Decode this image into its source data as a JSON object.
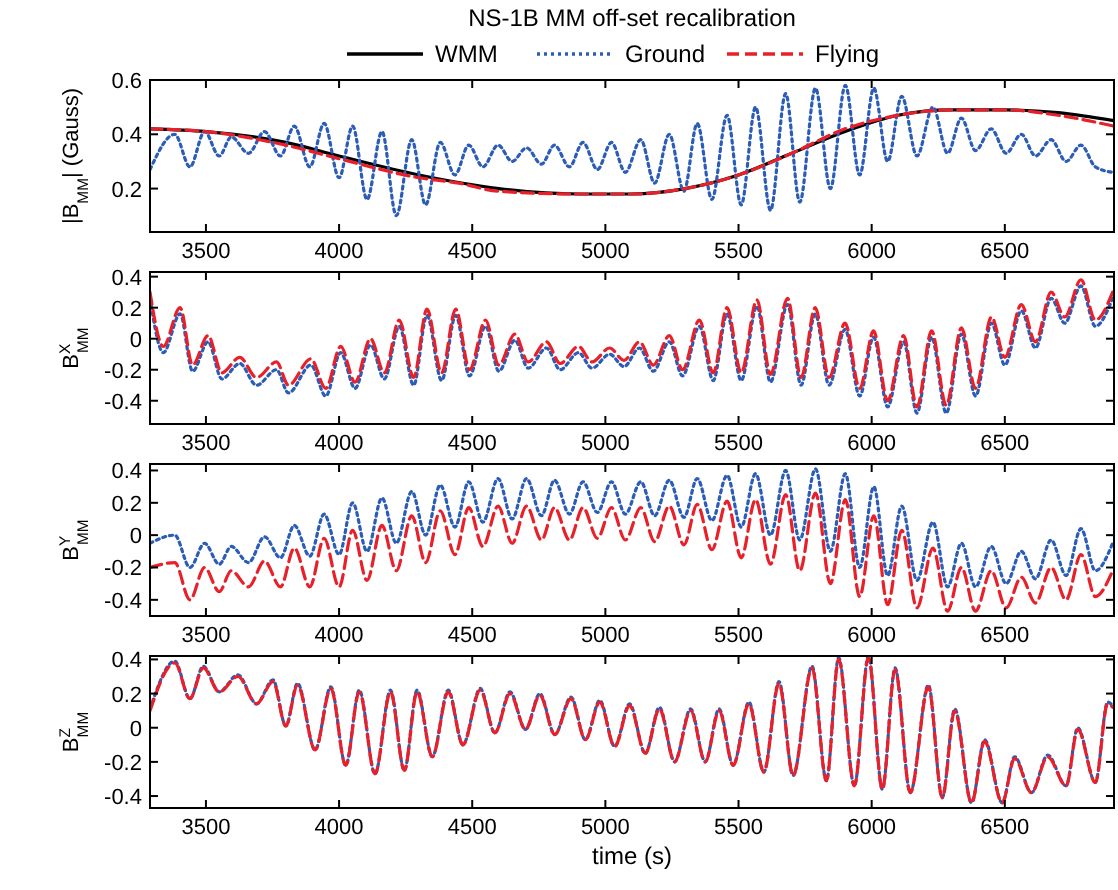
{
  "chart_data": [
    {
      "type": "line",
      "title": "NS-1B MM off-set recalibration",
      "ylabel": "|B$_{MM}$| (Gauss)",
      "legend": "top",
      "xlim": [
        3290,
        6910
      ],
      "xticks": [
        3500,
        4000,
        4500,
        5000,
        5500,
        6000,
        6500
      ],
      "ylim": [
        0.04,
        0.6
      ],
      "yticks": [
        0.2,
        0.4,
        0.6
      ],
      "series": [
        {
          "name": "WMM",
          "color": "#000000",
          "line_style": "solid",
          "x": [
            3290,
            3500,
            3800,
            4000,
            4300,
            4600,
            4900,
            5100,
            5300,
            5500,
            5700,
            5900,
            6100,
            6300,
            6500,
            6700,
            6910
          ],
          "values": [
            0.42,
            0.41,
            0.37,
            0.32,
            0.25,
            0.2,
            0.18,
            0.18,
            0.2,
            0.25,
            0.33,
            0.41,
            0.47,
            0.49,
            0.49,
            0.48,
            0.45
          ]
        },
        {
          "name": "Ground",
          "color": "#2a5cb8",
          "line_style": "dotted",
          "x": [
            3290,
            3383,
            3440,
            3495,
            3550,
            3595,
            3660,
            3720,
            3780,
            3832,
            3890,
            3944,
            4000,
            4051,
            4105,
            4161,
            4215,
            4273,
            4325,
            4380,
            4435,
            4487,
            4540,
            4597,
            4650,
            4704,
            4760,
            4809,
            4865,
            4916,
            4970,
            5023,
            5075,
            5133,
            5185,
            5240,
            5295,
            5345,
            5400,
            5457,
            5510,
            5564,
            5620,
            5677,
            5730,
            5789,
            5845,
            5901,
            5955,
            6008,
            6060,
            6113,
            6170,
            6230,
            6285,
            6337,
            6390,
            6449,
            6505,
            6562,
            6615,
            6674,
            6730,
            6786,
            6840,
            6905
          ],
          "values": [
            0.27,
            0.4,
            0.28,
            0.41,
            0.32,
            0.39,
            0.33,
            0.41,
            0.32,
            0.43,
            0.28,
            0.44,
            0.24,
            0.43,
            0.16,
            0.41,
            0.1,
            0.38,
            0.14,
            0.37,
            0.25,
            0.36,
            0.28,
            0.36,
            0.3,
            0.35,
            0.29,
            0.36,
            0.28,
            0.37,
            0.27,
            0.37,
            0.26,
            0.38,
            0.22,
            0.4,
            0.19,
            0.44,
            0.16,
            0.47,
            0.14,
            0.5,
            0.12,
            0.55,
            0.15,
            0.57,
            0.2,
            0.58,
            0.25,
            0.57,
            0.3,
            0.54,
            0.32,
            0.5,
            0.33,
            0.46,
            0.34,
            0.42,
            0.33,
            0.4,
            0.32,
            0.38,
            0.3,
            0.36,
            0.28,
            0.26
          ]
        },
        {
          "name": "Flying",
          "color": "#e8202a",
          "line_style": "dashed",
          "x": [
            3290,
            3500,
            3800,
            4000,
            4300,
            4450,
            4600,
            4900,
            5100,
            5300,
            5500,
            5700,
            5900,
            6100,
            6300,
            6500,
            6700,
            6910
          ],
          "values": [
            0.42,
            0.41,
            0.36,
            0.31,
            0.24,
            0.22,
            0.19,
            0.18,
            0.18,
            0.2,
            0.25,
            0.33,
            0.42,
            0.47,
            0.49,
            0.49,
            0.47,
            0.43
          ]
        }
      ]
    },
    {
      "type": "line",
      "ylabel": "B$^{X}$$_{MM}$",
      "xlim": [
        3290,
        6910
      ],
      "xticks": [
        3500,
        4000,
        4500,
        5000,
        5500,
        6000,
        6500
      ],
      "ylim": [
        -0.55,
        0.43
      ],
      "yticks": [
        -0.4,
        -0.2,
        0,
        0.2,
        0.4
      ],
      "x": [
        3290,
        3340,
        3403,
        3450,
        3508,
        3560,
        3627,
        3690,
        3765,
        3810,
        3894,
        3950,
        4006,
        4060,
        4118,
        4170,
        4226,
        4280,
        4330,
        4385,
        4438,
        4490,
        4550,
        4600,
        4660,
        4710,
        4779,
        4830,
        4899,
        4950,
        5016,
        5070,
        5128,
        5180,
        5240,
        5290,
        5353,
        5405,
        5457,
        5510,
        5569,
        5620,
        5684,
        5735,
        5788,
        5840,
        5900,
        5955,
        6007,
        6060,
        6120,
        6170,
        6225,
        6280,
        6337,
        6390,
        6450,
        6500,
        6562,
        6615,
        6674,
        6725,
        6786,
        6840,
        6905
      ],
      "series": [
        {
          "color": "#2a5cb8",
          "line_style": "dotted",
          "values": [
            0.26,
            -0.09,
            0.16,
            -0.21,
            -0.02,
            -0.26,
            -0.16,
            -0.3,
            -0.2,
            -0.35,
            -0.17,
            -0.37,
            -0.09,
            -0.32,
            -0.04,
            -0.26,
            0.08,
            -0.3,
            0.15,
            -0.27,
            0.15,
            -0.24,
            0.08,
            -0.21,
            -0.01,
            -0.19,
            -0.06,
            -0.2,
            -0.09,
            -0.19,
            -0.1,
            -0.18,
            -0.06,
            -0.21,
            -0.02,
            -0.24,
            0.08,
            -0.27,
            0.16,
            -0.27,
            0.21,
            -0.28,
            0.22,
            -0.3,
            0.16,
            -0.3,
            0.06,
            -0.37,
            0.01,
            -0.44,
            -0.02,
            -0.48,
            0.01,
            -0.48,
            0.03,
            -0.37,
            0.1,
            -0.17,
            0.18,
            -0.06,
            0.26,
            0.1,
            0.34,
            0.08,
            0.26
          ]
        },
        {
          "color": "#e8202a",
          "line_style": "dashed",
          "values": [
            0.3,
            -0.05,
            0.2,
            -0.17,
            0.02,
            -0.22,
            -0.12,
            -0.25,
            -0.15,
            -0.3,
            -0.13,
            -0.32,
            -0.05,
            -0.28,
            0,
            -0.22,
            0.12,
            -0.25,
            0.19,
            -0.22,
            0.19,
            -0.2,
            0.12,
            -0.17,
            0.03,
            -0.15,
            -0.02,
            -0.16,
            -0.05,
            -0.15,
            -0.06,
            -0.14,
            -0.02,
            -0.17,
            0.02,
            -0.2,
            0.12,
            -0.22,
            0.2,
            -0.22,
            0.25,
            -0.23,
            0.26,
            -0.25,
            0.2,
            -0.25,
            0.1,
            -0.32,
            0.05,
            -0.4,
            0.02,
            -0.44,
            0.05,
            -0.43,
            0.07,
            -0.32,
            0.14,
            -0.12,
            0.22,
            -0.02,
            0.3,
            0.14,
            0.38,
            0.12,
            0.3
          ]
        }
      ]
    },
    {
      "type": "line",
      "ylabel": "B$^{Y}$$_{MM}$",
      "xlim": [
        3290,
        6910
      ],
      "xticks": [
        3500,
        4000,
        4500,
        5000,
        5500,
        6000,
        6500
      ],
      "ylim": [
        -0.5,
        0.44
      ],
      "yticks": [
        -0.4,
        -0.2,
        0,
        0.2,
        0.4
      ],
      "x": [
        3290,
        3383,
        3440,
        3495,
        3550,
        3595,
        3660,
        3720,
        3780,
        3832,
        3890,
        3944,
        4000,
        4051,
        4105,
        4161,
        4215,
        4273,
        4325,
        4380,
        4435,
        4487,
        4540,
        4597,
        4650,
        4704,
        4760,
        4809,
        4865,
        4916,
        4970,
        5023,
        5075,
        5133,
        5185,
        5240,
        5295,
        5345,
        5400,
        5457,
        5510,
        5564,
        5620,
        5677,
        5730,
        5789,
        5845,
        5901,
        5955,
        6008,
        6060,
        6113,
        6170,
        6230,
        6285,
        6337,
        6390,
        6449,
        6505,
        6562,
        6615,
        6674,
        6730,
        6786,
        6840,
        6905
      ],
      "series": [
        {
          "color": "#2a5cb8",
          "line_style": "dotted",
          "values": [
            -0.05,
            0,
            -0.2,
            -0.05,
            -0.18,
            -0.07,
            -0.17,
            -0.01,
            -0.14,
            0.06,
            -0.13,
            0.13,
            -0.12,
            0.2,
            -0.1,
            0.23,
            -0.05,
            0.27,
            0,
            0.31,
            0.05,
            0.33,
            0.08,
            0.35,
            0.1,
            0.35,
            0.12,
            0.34,
            0.13,
            0.33,
            0.14,
            0.33,
            0.13,
            0.33,
            0.12,
            0.34,
            0.11,
            0.35,
            0.09,
            0.37,
            0.05,
            0.38,
            0,
            0.4,
            -0.03,
            0.41,
            -0.1,
            0.38,
            -0.2,
            0.3,
            -0.25,
            0.18,
            -0.28,
            0.08,
            -0.32,
            -0.05,
            -0.32,
            -0.07,
            -0.3,
            -0.1,
            -0.27,
            -0.03,
            -0.25,
            0.04,
            -0.22,
            -0.05
          ]
        },
        {
          "color": "#e8202a",
          "line_style": "dashed",
          "values": [
            -0.2,
            -0.17,
            -0.4,
            -0.2,
            -0.35,
            -0.22,
            -0.32,
            -0.16,
            -0.32,
            -0.08,
            -0.32,
            -0.02,
            -0.32,
            0.03,
            -0.28,
            0.06,
            -0.22,
            0.12,
            -0.17,
            0.15,
            -0.12,
            0.17,
            -0.07,
            0.18,
            -0.05,
            0.18,
            -0.03,
            0.17,
            -0.03,
            0.17,
            -0.02,
            0.17,
            -0.03,
            0.17,
            -0.04,
            0.18,
            -0.06,
            0.19,
            -0.09,
            0.21,
            -0.14,
            0.22,
            -0.18,
            0.25,
            -0.22,
            0.26,
            -0.3,
            0.22,
            -0.38,
            0.12,
            -0.43,
            0.03,
            -0.45,
            -0.08,
            -0.47,
            -0.2,
            -0.47,
            -0.22,
            -0.45,
            -0.26,
            -0.42,
            -0.2,
            -0.4,
            -0.12,
            -0.38,
            -0.22
          ]
        }
      ]
    },
    {
      "type": "line",
      "ylabel": "B$^{Z}$$_{MM}$",
      "xlabel": "time (s)",
      "xlim": [
        3290,
        6910
      ],
      "xticks": [
        3500,
        4000,
        4500,
        5000,
        5500,
        6000,
        6500
      ],
      "ylim": [
        -0.47,
        0.42
      ],
      "yticks": [
        -0.4,
        -0.2,
        0,
        0.2,
        0.4
      ],
      "x": [
        3290,
        3383,
        3440,
        3490,
        3550,
        3620,
        3690,
        3752,
        3800,
        3844,
        3910,
        3969,
        4025,
        4076,
        4135,
        4193,
        4245,
        4293,
        4350,
        4410,
        4465,
        4530,
        4585,
        4642,
        4700,
        4754,
        4810,
        4871,
        4925,
        4979,
        5035,
        5091,
        5150,
        5203,
        5260,
        5320,
        5375,
        5427,
        5480,
        5539,
        5595,
        5652,
        5705,
        5776,
        5830,
        5876,
        5935,
        5988,
        6040,
        6088,
        6145,
        6213,
        6265,
        6312,
        6375,
        6424,
        6490,
        6537,
        6600,
        6661,
        6730,
        6774,
        6840,
        6886,
        6905
      ],
      "series": [
        {
          "color": "#2a5cb8",
          "line_style": "dotted",
          "values": [
            0.11,
            0.39,
            0.17,
            0.36,
            0.21,
            0.31,
            0.14,
            0.28,
            0.01,
            0.26,
            -0.13,
            0.24,
            -0.22,
            0.22,
            -0.27,
            0.22,
            -0.25,
            0.22,
            -0.17,
            0.22,
            -0.1,
            0.23,
            -0.03,
            0.21,
            -0.01,
            0.2,
            -0.04,
            0.18,
            -0.07,
            0.16,
            -0.11,
            0.14,
            -0.15,
            0.12,
            -0.2,
            0.11,
            -0.2,
            0.11,
            -0.22,
            0.15,
            -0.26,
            0.27,
            -0.28,
            0.36,
            -0.31,
            0.41,
            -0.34,
            0.42,
            -0.36,
            0.35,
            -0.38,
            0.25,
            -0.41,
            0.11,
            -0.44,
            -0.07,
            -0.44,
            -0.17,
            -0.38,
            -0.16,
            -0.34,
            0,
            -0.32,
            0.15,
            0.13
          ]
        },
        {
          "color": "#e8202a",
          "line_style": "dashed",
          "values": [
            0.1,
            0.38,
            0.17,
            0.35,
            0.21,
            0.3,
            0.14,
            0.27,
            0.01,
            0.25,
            -0.13,
            0.23,
            -0.22,
            0.21,
            -0.27,
            0.21,
            -0.25,
            0.21,
            -0.17,
            0.21,
            -0.1,
            0.22,
            -0.03,
            0.2,
            -0.01,
            0.19,
            -0.04,
            0.17,
            -0.07,
            0.15,
            -0.11,
            0.13,
            -0.15,
            0.11,
            -0.2,
            0.1,
            -0.2,
            0.1,
            -0.22,
            0.14,
            -0.26,
            0.26,
            -0.28,
            0.35,
            -0.31,
            0.4,
            -0.34,
            0.41,
            -0.36,
            0.34,
            -0.38,
            0.24,
            -0.41,
            0.1,
            -0.44,
            -0.08,
            -0.44,
            -0.18,
            -0.38,
            -0.17,
            -0.34,
            -0.01,
            -0.32,
            0.14,
            0.12
          ]
        }
      ]
    }
  ]
}
